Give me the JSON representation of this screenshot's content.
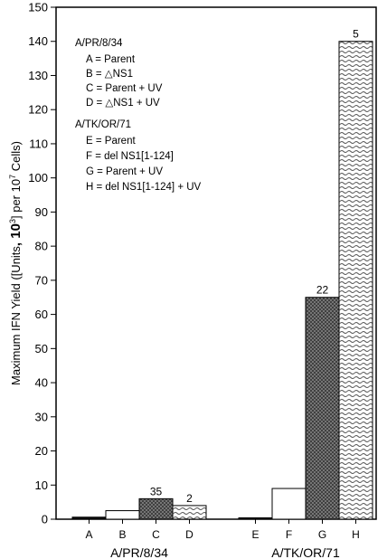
{
  "chart_data": {
    "type": "bar",
    "ylabel_parts": [
      "Maximum IFN Yield ([Units",
      ", 10",
      "3",
      "] per 10",
      "7",
      " Cells)"
    ],
    "ylim": [
      0,
      150
    ],
    "yticks": [
      0,
      10,
      20,
      30,
      40,
      50,
      60,
      70,
      80,
      90,
      100,
      110,
      120,
      130,
      140,
      150
    ],
    "categories": [
      "A",
      "B",
      "C",
      "D",
      "E",
      "F",
      "G",
      "H"
    ],
    "values": [
      0.6,
      2.5,
      6.0,
      4.0,
      0.4,
      9.0,
      65.0,
      140.0
    ],
    "bar_labels": [
      "",
      "",
      "35",
      "2",
      "",
      "",
      "22",
      "5"
    ],
    "patterns": [
      "solid",
      "blank",
      "crosshatch",
      "wave",
      "solid",
      "blank",
      "crosshatch",
      "wave"
    ],
    "groups": [
      {
        "name": "A/PR/8/34",
        "categories": [
          "A",
          "B",
          "C",
          "D"
        ]
      },
      {
        "name": "A/TK/OR/71",
        "categories": [
          "E",
          "F",
          "G",
          "H"
        ]
      }
    ],
    "legend": {
      "placement": "top-left",
      "blocks": [
        {
          "title": "A/PR/8/34",
          "entries": [
            "A = Parent",
            "B = △NS1",
            "C = Parent  + UV",
            "D = △NS1 + UV"
          ]
        },
        {
          "title": "A/TK/OR/71",
          "entries": [
            "E = Parent",
            "F = del NS1[1-124]",
            "G = Parent + UV",
            "H = del NS1[1-124] + UV"
          ]
        }
      ]
    },
    "grid": false
  }
}
